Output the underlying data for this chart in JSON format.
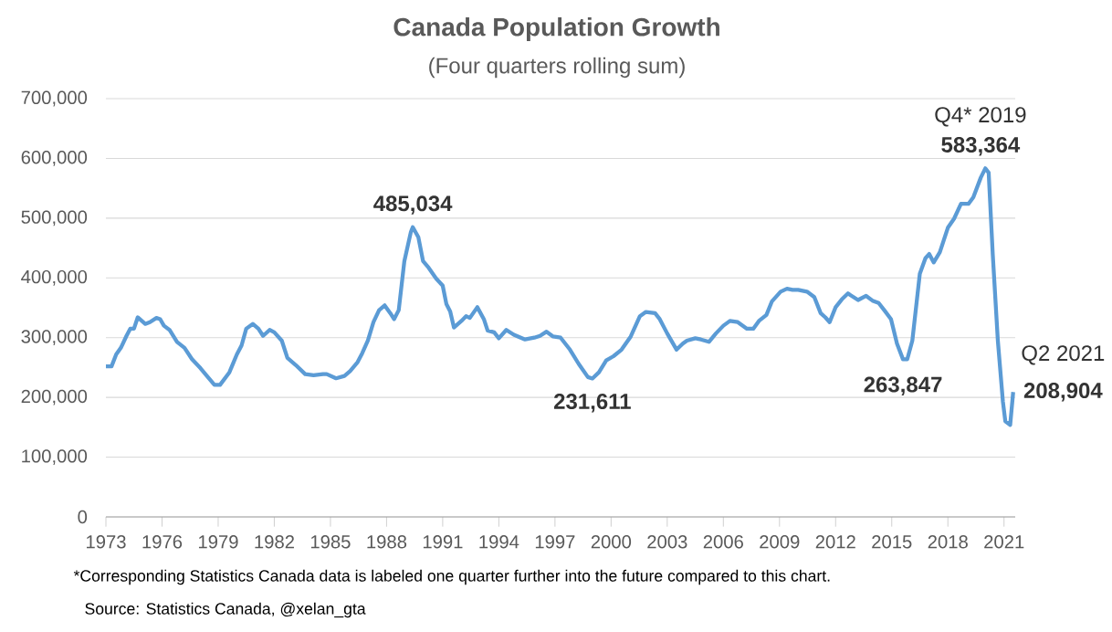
{
  "chart_data": {
    "type": "line",
    "title": "Canada Population Growth",
    "subtitle": "(Four quarters rolling sum)",
    "x": [
      1973.0,
      1973.3,
      1973.55,
      1973.8,
      1974.1,
      1974.3,
      1974.5,
      1974.7,
      1975.1,
      1975.35,
      1975.7,
      1975.9,
      1976.1,
      1976.4,
      1976.8,
      1977.2,
      1977.6,
      1978.05,
      1978.5,
      1978.8,
      1979.1,
      1979.6,
      1980.0,
      1980.25,
      1980.5,
      1980.85,
      1981.15,
      1981.4,
      1981.75,
      1982.0,
      1982.4,
      1982.7,
      1983.15,
      1983.65,
      1984.1,
      1984.6,
      1984.8,
      1985.3,
      1985.75,
      1986.05,
      1986.45,
      1986.7,
      1987.0,
      1987.3,
      1987.6,
      1987.9,
      1988.2,
      1988.4,
      1988.65,
      1988.95,
      1989.3,
      1989.4,
      1989.7,
      1989.95,
      1990.25,
      1990.65,
      1991.0,
      1991.2,
      1991.4,
      1991.6,
      1992.0,
      1992.25,
      1992.45,
      1992.85,
      1993.2,
      1993.4,
      1993.75,
      1994.0,
      1994.4,
      1994.8,
      1995.4,
      1995.9,
      1996.2,
      1996.55,
      1996.9,
      1997.3,
      1997.8,
      1998.27,
      1998.76,
      1999.0,
      1999.35,
      1999.74,
      2000.13,
      2000.56,
      2001.05,
      2001.54,
      2001.86,
      2002.35,
      2002.6,
      2003.0,
      2003.5,
      2003.83,
      2004.05,
      2004.5,
      2004.8,
      2005.23,
      2005.6,
      2006.0,
      2006.35,
      2006.77,
      2007.26,
      2007.6,
      2007.9,
      2008.3,
      2008.6,
      2009.06,
      2009.4,
      2009.7,
      2010.0,
      2010.47,
      2010.86,
      2011.2,
      2011.45,
      2011.68,
      2012.0,
      2012.33,
      2012.66,
      2012.8,
      2013.2,
      2013.63,
      2013.97,
      2014.3,
      2014.6,
      2014.96,
      2015.28,
      2015.6,
      2015.83,
      2016.1,
      2016.5,
      2016.8,
      2017.0,
      2017.24,
      2017.57,
      2018.0,
      2018.33,
      2018.7,
      2019.1,
      2019.36,
      2019.76,
      2020.0,
      2020.18,
      2020.4,
      2020.67,
      2020.94,
      2021.07,
      2021.33,
      2021.49
    ],
    "values": [
      252000,
      252000,
      272000,
      283000,
      303000,
      315000,
      315000,
      334000,
      323000,
      326000,
      333000,
      331000,
      320000,
      313000,
      293000,
      283000,
      264000,
      249000,
      232000,
      221000,
      221000,
      242000,
      272000,
      287000,
      315000,
      323000,
      315000,
      303000,
      313000,
      309000,
      295000,
      266000,
      254000,
      239000,
      237000,
      239000,
      239000,
      232000,
      236000,
      244000,
      259000,
      274000,
      295000,
      326000,
      346000,
      354000,
      341000,
      331000,
      346000,
      428000,
      477000,
      485034,
      468000,
      428000,
      417000,
      399000,
      387000,
      356000,
      344000,
      317000,
      328000,
      336000,
      333000,
      351000,
      331000,
      312000,
      309000,
      299000,
      313000,
      305000,
      297000,
      300000,
      303000,
      310000,
      302000,
      300000,
      280000,
      256000,
      234000,
      231611,
      242000,
      262000,
      269000,
      280000,
      302000,
      336000,
      343000,
      341000,
      331000,
      307000,
      280000,
      290000,
      295000,
      299000,
      297000,
      293000,
      307000,
      320000,
      328000,
      326000,
      315000,
      315000,
      328000,
      338000,
      361000,
      377000,
      382000,
      380000,
      380000,
      377000,
      368000,
      341000,
      334000,
      326000,
      351000,
      364000,
      374000,
      371000,
      363000,
      370000,
      362000,
      358000,
      346000,
      331000,
      290000,
      263847,
      264000,
      295000,
      407000,
      433000,
      440000,
      426000,
      443000,
      484000,
      499000,
      524000,
      524000,
      535000,
      568000,
      583364,
      576000,
      438000,
      295000,
      193000,
      160000,
      154000,
      208904
    ],
    "color": "#5b9bd5",
    "line_style": "solid",
    "marker": "none",
    "grid": "y",
    "xlim": [
      1973,
      2021.6
    ],
    "xticks": [
      1973,
      1976,
      1979,
      1982,
      1985,
      1988,
      1991,
      1994,
      1997,
      2000,
      2003,
      2006,
      2009,
      2012,
      2015,
      2018,
      2021
    ],
    "ylim": [
      0,
      700000
    ],
    "yticks": [
      0,
      {
        "value": 100000,
        "label": "100,000"
      },
      {
        "value": 200000,
        "label": "200,000"
      },
      {
        "value": 300000,
        "label": "300,000"
      },
      {
        "value": 400000,
        "label": "400,000"
      },
      {
        "value": 500000,
        "label": "500,000"
      },
      {
        "value": 600000,
        "label": "600,000"
      },
      {
        "value": 700000,
        "label": "700,000"
      }
    ],
    "annotations": [
      {
        "text": "485,034",
        "x": 1989.4,
        "y": 485034
      },
      {
        "text": "231,611",
        "x": 1999.0,
        "y": 231611
      },
      {
        "text": "263,847",
        "x": 2015.6,
        "y": 263847
      },
      {
        "text": "Q4* 2019",
        "x": 2020.0,
        "y": 583364
      },
      {
        "text": "583,364",
        "x": 2020.0,
        "y": 583364
      },
      {
        "text": "Q2 2021",
        "x": 2021.49,
        "y": 208904
      },
      {
        "text": "208,904",
        "x": 2021.49,
        "y": 208904
      },
      "*Corresponding Statistics Canada data is labeled one quarter further into the future compared to this chart.",
      "Source: Statistics Canada, @xelan_gta"
    ]
  }
}
